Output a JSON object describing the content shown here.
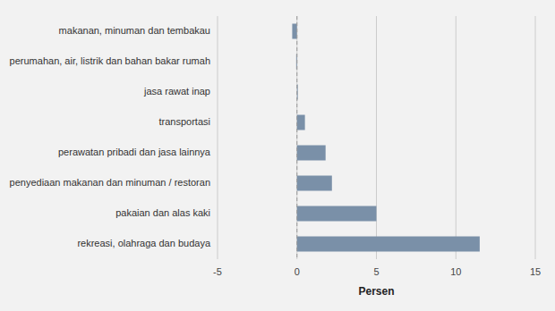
{
  "chart_data": {
    "type": "bar",
    "orientation": "horizontal",
    "categories": [
      "rekreasi, olahraga dan budaya",
      "pakaian dan alas kaki",
      "penyediaan makanan dan minuman / restoran",
      "perawatan pribadi dan jasa lainnya",
      "transportasi",
      "jasa rawat inap",
      "perumahan, air, listrik dan bahan bakar rumah",
      "makanan, minuman dan tembakau"
    ],
    "values": [
      11.5,
      5.0,
      2.2,
      1.8,
      0.5,
      0.05,
      -0.05,
      -0.3
    ],
    "color": "#7a90a8",
    "xlabel": "Persen",
    "xlim": [
      -5,
      15
    ],
    "xticks": [
      -5,
      0,
      5,
      10,
      15
    ],
    "grid": true
  }
}
